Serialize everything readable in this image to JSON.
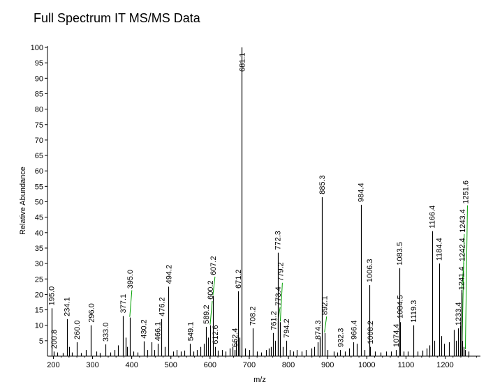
{
  "title": "Full Spectrum IT MS/MS Data",
  "chart_data": {
    "type": "bar",
    "title": "Full Spectrum IT MS/MS Data",
    "xlabel": "m/z",
    "ylabel": "Relative Abundance",
    "xlim": [
      185,
      1290
    ],
    "ylim": [
      0,
      100
    ],
    "xticks": [
      200,
      300,
      400,
      500,
      600,
      700,
      800,
      900,
      1000,
      1100,
      1200
    ],
    "yticks": [
      5,
      10,
      15,
      20,
      25,
      30,
      35,
      40,
      45,
      50,
      55,
      60,
      65,
      70,
      75,
      80,
      85,
      90,
      95,
      100
    ],
    "grid": false,
    "series": [
      {
        "values": [
          {
            "x": 195.0,
            "y": 15.5,
            "label": "195.0"
          },
          {
            "x": 200.8,
            "y": 1.5,
            "label": "200.8"
          },
          {
            "x": 234.1,
            "y": 12.0,
            "label": "234.1"
          },
          {
            "x": 260.0,
            "y": 4.5,
            "label": "260.0"
          },
          {
            "x": 296.0,
            "y": 10.0,
            "label": "296.0"
          },
          {
            "x": 333.0,
            "y": 3.8,
            "label": "333.0"
          },
          {
            "x": 377.1,
            "y": 13.0,
            "label": "377.1"
          },
          {
            "x": 395.0,
            "y": 12.5,
            "label": "395.0"
          },
          {
            "x": 430.2,
            "y": 4.8,
            "label": "430.2"
          },
          {
            "x": 466.1,
            "y": 4.0,
            "label": "466.1"
          },
          {
            "x": 476.2,
            "y": 12.0,
            "label": "476.2"
          },
          {
            "x": 494.2,
            "y": 22.5,
            "label": "494.2"
          },
          {
            "x": 549.1,
            "y": 4.0,
            "label": "549.1"
          },
          {
            "x": 589.2,
            "y": 9.5,
            "label": "589.2"
          },
          {
            "x": 600.2,
            "y": 10.0,
            "label": "600.2"
          },
          {
            "x": 607.2,
            "y": 19.5,
            "label": "607.2"
          },
          {
            "x": 612.6,
            "y": 3.0,
            "label": "612.6"
          },
          {
            "x": 662.4,
            "y": 2.0,
            "label": "662.4"
          },
          {
            "x": 671.2,
            "y": 21.0,
            "label": "671.2"
          },
          {
            "x": 681.1,
            "y": 100.0,
            "label": "681.1"
          },
          {
            "x": 708.2,
            "y": 9.0,
            "label": "708.2"
          },
          {
            "x": 761.2,
            "y": 7.5,
            "label": "761.2"
          },
          {
            "x": 772.3,
            "y": 33.5,
            "label": "772.3"
          },
          {
            "x": 773.4,
            "y": 11.5,
            "label": "773.4"
          },
          {
            "x": 779.2,
            "y": 11.0,
            "label": "779.2"
          },
          {
            "x": 794.2,
            "y": 5.0,
            "label": "794.2"
          },
          {
            "x": 874.3,
            "y": 4.5,
            "label": "874.3"
          },
          {
            "x": 885.3,
            "y": 51.5,
            "label": "885.3"
          },
          {
            "x": 892.1,
            "y": 7.5,
            "label": "892.1"
          },
          {
            "x": 932.3,
            "y": 2.0,
            "label": "932.3"
          },
          {
            "x": 966.4,
            "y": 4.5,
            "label": "966.4"
          },
          {
            "x": 984.4,
            "y": 49.0,
            "label": "984.4"
          },
          {
            "x": 1006.3,
            "y": 23.0,
            "label": "1006.3"
          },
          {
            "x": 1008.2,
            "y": 3.0,
            "label": "1008.2"
          },
          {
            "x": 1074.4,
            "y": 2.0,
            "label": "1074.4"
          },
          {
            "x": 1083.5,
            "y": 28.5,
            "label": "1083.5"
          },
          {
            "x": 1084.5,
            "y": 11.0,
            "label": "1084.5"
          },
          {
            "x": 1119.3,
            "y": 10.0,
            "label": "1119.3"
          },
          {
            "x": 1166.4,
            "y": 40.5,
            "label": "1166.4"
          },
          {
            "x": 1184.4,
            "y": 30.0,
            "label": "1184.4"
          },
          {
            "x": 1233.4,
            "y": 9.0,
            "label": "1233.4"
          },
          {
            "x": 1241.4,
            "y": 20.5,
            "label": "1241.4"
          },
          {
            "x": 1242.4,
            "y": 21.5,
            "label": "1242.4"
          },
          {
            "x": 1243.4,
            "y": 5.0,
            "label": "1243.4"
          },
          {
            "x": 1251.6,
            "y": 2.0,
            "label": "1251.6"
          },
          {
            "x": 210.0,
            "y": 1.2
          },
          {
            "x": 225.0,
            "y": 1.0
          },
          {
            "x": 240.0,
            "y": 3.0
          },
          {
            "x": 248.0,
            "y": 1.2
          },
          {
            "x": 270.0,
            "y": 1.0
          },
          {
            "x": 283.0,
            "y": 2.0
          },
          {
            "x": 310.0,
            "y": 1.5
          },
          {
            "x": 318.0,
            "y": 1.0
          },
          {
            "x": 345.0,
            "y": 1.2
          },
          {
            "x": 356.0,
            "y": 2.0
          },
          {
            "x": 365.0,
            "y": 3.5
          },
          {
            "x": 384.0,
            "y": 6.0
          },
          {
            "x": 389.0,
            "y": 3.0
          },
          {
            "x": 405.0,
            "y": 1.5
          },
          {
            "x": 415.0,
            "y": 1.2
          },
          {
            "x": 440.0,
            "y": 2.0
          },
          {
            "x": 450.0,
            "y": 4.5
          },
          {
            "x": 458.0,
            "y": 2.0
          },
          {
            "x": 484.0,
            "y": 3.0
          },
          {
            "x": 505.0,
            "y": 1.5
          },
          {
            "x": 515.0,
            "y": 2.0
          },
          {
            "x": 525.0,
            "y": 1.5
          },
          {
            "x": 535.0,
            "y": 1.8
          },
          {
            "x": 558.0,
            "y": 1.5
          },
          {
            "x": 566.0,
            "y": 2.0
          },
          {
            "x": 575.0,
            "y": 3.0
          },
          {
            "x": 584.0,
            "y": 4.0
          },
          {
            "x": 595.0,
            "y": 6.0
          },
          {
            "x": 620.0,
            "y": 1.8
          },
          {
            "x": 630.0,
            "y": 2.0
          },
          {
            "x": 640.0,
            "y": 1.5
          },
          {
            "x": 650.0,
            "y": 2.5
          },
          {
            "x": 657.0,
            "y": 3.0
          },
          {
            "x": 666.0,
            "y": 5.0
          },
          {
            "x": 676.0,
            "y": 6.0
          },
          {
            "x": 690.0,
            "y": 2.5
          },
          {
            "x": 700.0,
            "y": 2.0
          },
          {
            "x": 720.0,
            "y": 1.5
          },
          {
            "x": 730.0,
            "y": 1.2
          },
          {
            "x": 742.0,
            "y": 2.0
          },
          {
            "x": 750.0,
            "y": 2.5
          },
          {
            "x": 756.0,
            "y": 3.0
          },
          {
            "x": 766.0,
            "y": 5.0
          },
          {
            "x": 786.0,
            "y": 3.0
          },
          {
            "x": 803.0,
            "y": 2.0
          },
          {
            "x": 812.0,
            "y": 1.5
          },
          {
            "x": 822.0,
            "y": 2.0
          },
          {
            "x": 833.0,
            "y": 1.5
          },
          {
            "x": 845.0,
            "y": 2.0
          },
          {
            "x": 858.0,
            "y": 2.5
          },
          {
            "x": 866.0,
            "y": 3.0
          },
          {
            "x": 880.0,
            "y": 6.0
          },
          {
            "x": 900.0,
            "y": 2.0
          },
          {
            "x": 915.0,
            "y": 1.5
          },
          {
            "x": 925.0,
            "y": 1.2
          },
          {
            "x": 945.0,
            "y": 1.5
          },
          {
            "x": 955.0,
            "y": 2.5
          },
          {
            "x": 975.0,
            "y": 4.0
          },
          {
            "x": 995.0,
            "y": 2.0
          },
          {
            "x": 1020.0,
            "y": 1.5
          },
          {
            "x": 1035.0,
            "y": 1.2
          },
          {
            "x": 1050.0,
            "y": 1.5
          },
          {
            "x": 1062.0,
            "y": 1.5
          },
          {
            "x": 1094.0,
            "y": 1.5
          },
          {
            "x": 1105.0,
            "y": 1.5
          },
          {
            "x": 1130.0,
            "y": 1.5
          },
          {
            "x": 1142.0,
            "y": 1.8
          },
          {
            "x": 1152.0,
            "y": 2.5
          },
          {
            "x": 1160.0,
            "y": 3.5
          },
          {
            "x": 1173.0,
            "y": 5.0
          },
          {
            "x": 1190.0,
            "y": 6.5
          },
          {
            "x": 1198.0,
            "y": 4.0
          },
          {
            "x": 1210.0,
            "y": 4.5
          },
          {
            "x": 1222.0,
            "y": 8.5
          },
          {
            "x": 1228.0,
            "y": 5.0
          },
          {
            "x": 1238.0,
            "y": 10.0
          },
          {
            "x": 1247.0,
            "y": 3.0
          },
          {
            "x": 1260.0,
            "y": 1.5
          }
        ]
      }
    ],
    "annotation_color": "#00a000",
    "bar_color": "#000000"
  }
}
